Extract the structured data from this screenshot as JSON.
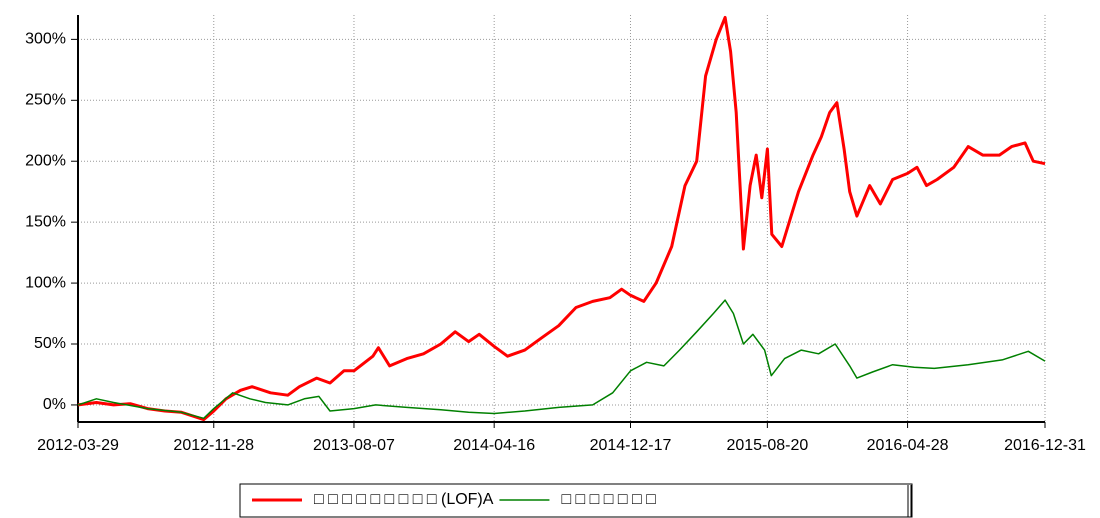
{
  "chart_data": {
    "type": "line",
    "xlim": [
      "2012-03-29",
      "2016-12-31"
    ],
    "xticks": [
      "2012-03-29",
      "2012-11-28",
      "2013-08-07",
      "2014-04-16",
      "2014-12-17",
      "2015-08-20",
      "2016-04-28",
      "2016-12-31"
    ],
    "ylim": [
      -14,
      320
    ],
    "yticks": [
      {
        "value": 0,
        "label": "0%"
      },
      {
        "value": 50,
        "label": "50%"
      },
      {
        "value": 100,
        "label": "100%"
      },
      {
        "value": 150,
        "label": "150%"
      },
      {
        "value": 200,
        "label": "200%"
      },
      {
        "value": 250,
        "label": "250%"
      },
      {
        "value": 300,
        "label": "300%"
      }
    ],
    "grid": true,
    "legend": "bottom",
    "series": [
      {
        "name": "□ □ □ □ □ □ □ □ □ (LOF)A",
        "color": "#ff0000",
        "x": [
          "2012-03-29",
          "2012-05-01",
          "2012-06-01",
          "2012-07-01",
          "2012-08-01",
          "2012-09-01",
          "2012-10-01",
          "2012-11-10",
          "2012-11-28",
          "2012-12-20",
          "2013-01-15",
          "2013-02-05",
          "2013-03-10",
          "2013-04-10",
          "2013-05-01",
          "2013-06-01",
          "2013-06-25",
          "2013-07-20",
          "2013-08-07",
          "2013-09-10",
          "2013-09-20",
          "2013-10-10",
          "2013-11-10",
          "2013-12-10",
          "2014-01-10",
          "2014-02-05",
          "2014-03-01",
          "2014-03-20",
          "2014-04-16",
          "2014-05-10",
          "2014-06-10",
          "2014-07-10",
          "2014-08-10",
          "2014-09-10",
          "2014-10-10",
          "2014-11-10",
          "2014-12-01",
          "2014-12-17",
          "2015-01-10",
          "2015-02-01",
          "2015-03-01",
          "2015-03-25",
          "2015-04-15",
          "2015-05-01",
          "2015-05-20",
          "2015-06-05",
          "2015-06-15",
          "2015-06-25",
          "2015-07-08",
          "2015-07-20",
          "2015-07-31",
          "2015-08-10",
          "2015-08-20",
          "2015-08-28",
          "2015-09-15",
          "2015-10-15",
          "2015-11-10",
          "2015-11-25",
          "2015-12-10",
          "2015-12-23",
          "2016-01-05",
          "2016-01-15",
          "2016-01-28",
          "2016-02-20",
          "2016-03-10",
          "2016-04-01",
          "2016-04-28",
          "2016-05-15",
          "2016-06-01",
          "2016-06-20",
          "2016-07-20",
          "2016-08-15",
          "2016-09-10",
          "2016-10-10",
          "2016-11-01",
          "2016-11-25",
          "2016-12-10",
          "2016-12-31"
        ],
        "values": [
          0,
          2,
          0,
          1,
          -3,
          -5,
          -6,
          -12,
          -5,
          5,
          12,
          15,
          10,
          8,
          15,
          22,
          18,
          28,
          28,
          40,
          47,
          32,
          38,
          42,
          50,
          60,
          52,
          58,
          48,
          40,
          45,
          55,
          65,
          80,
          85,
          88,
          95,
          90,
          85,
          100,
          130,
          180,
          200,
          270,
          300,
          318,
          290,
          240,
          128,
          180,
          205,
          170,
          210,
          140,
          130,
          175,
          205,
          220,
          240,
          248,
          210,
          175,
          155,
          180,
          165,
          185,
          190,
          195,
          180,
          185,
          195,
          212,
          205,
          205,
          212,
          215,
          200,
          198
        ]
      },
      {
        "name": "□ □ □ □ □ □ □",
        "color": "#008000",
        "x": [
          "2012-03-29",
          "2012-05-01",
          "2012-06-01",
          "2012-08-01",
          "2012-10-01",
          "2012-11-10",
          "2012-11-28",
          "2013-01-01",
          "2013-02-01",
          "2013-03-01",
          "2013-04-10",
          "2013-05-10",
          "2013-06-05",
          "2013-06-25",
          "2013-08-07",
          "2013-09-15",
          "2013-11-10",
          "2014-01-10",
          "2014-03-01",
          "2014-04-16",
          "2014-06-10",
          "2014-08-10",
          "2014-10-10",
          "2014-11-15",
          "2014-12-17",
          "2015-01-15",
          "2015-02-15",
          "2015-03-15",
          "2015-04-15",
          "2015-05-15",
          "2015-06-05",
          "2015-06-20",
          "2015-07-08",
          "2015-07-25",
          "2015-08-15",
          "2015-08-27",
          "2015-09-20",
          "2015-10-20",
          "2015-11-20",
          "2015-12-20",
          "2016-01-15",
          "2016-01-28",
          "2016-02-25",
          "2016-04-01",
          "2016-05-10",
          "2016-06-15",
          "2016-08-15",
          "2016-10-15",
          "2016-12-01",
          "2016-12-31"
        ],
        "values": [
          0,
          5,
          2,
          -3,
          -6,
          -11,
          -3,
          10,
          5,
          2,
          0,
          5,
          7,
          -5,
          -3,
          0,
          -2,
          -4,
          -6,
          -7,
          -5,
          -2,
          0,
          10,
          28,
          35,
          32,
          45,
          60,
          75,
          86,
          75,
          50,
          58,
          45,
          24,
          38,
          45,
          42,
          50,
          32,
          22,
          27,
          33,
          31,
          30,
          33,
          37,
          44,
          36
        ]
      }
    ]
  }
}
